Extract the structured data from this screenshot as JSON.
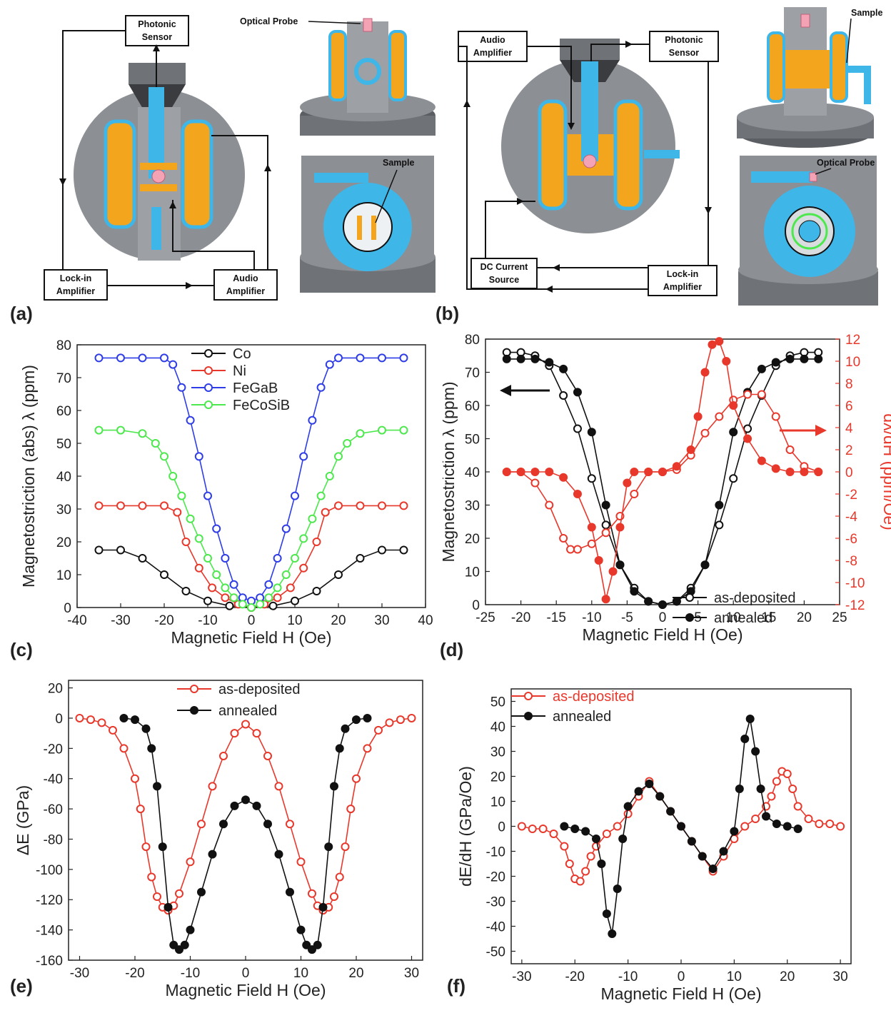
{
  "panel_letters": {
    "a": "(a)",
    "b": "(b)",
    "c": "(c)",
    "d": "(d)",
    "e": "(e)",
    "f": "(f)"
  },
  "diagram_a": {
    "photonic_sensor": [
      "Photonic",
      "Sensor"
    ],
    "lock_in": [
      "Lock-in",
      "Amplifier"
    ],
    "audio_amp": [
      "Audio",
      "Amplifier"
    ],
    "optical_probe": "Optical Probe",
    "sample": "Sample"
  },
  "diagram_b": {
    "audio_amp": [
      "Audio",
      "Amplifier"
    ],
    "photonic_sensor": [
      "Photonic",
      "Sensor"
    ],
    "dc_source": [
      "DC Current",
      "Source"
    ],
    "lock_in": [
      "Lock-in",
      "Amplifier"
    ],
    "sample": "Sample",
    "optical_probe": "Optical Probe"
  },
  "colors": {
    "black": "#111111",
    "red": "#e8382c",
    "blue": "#2f3de6",
    "green": "#4de84d",
    "coil": "#f2a51d",
    "ring": "#3fb6e8",
    "body": "#8c8f94"
  },
  "chart_data": [
    {
      "id": "c",
      "type": "line",
      "xlabel": "Magnetic Field H (Oe)",
      "ylabel": "Magnetostriction (abs) λ  (ppm)",
      "xlim": [
        -40,
        40
      ],
      "ylim": [
        0,
        80
      ],
      "xticks": [
        -40,
        -30,
        -20,
        -10,
        0,
        10,
        20,
        30,
        40
      ],
      "yticks": [
        0,
        10,
        20,
        30,
        40,
        50,
        60,
        70,
        80
      ],
      "legend": "top-center",
      "series": [
        {
          "name": "Co",
          "color": "#111111",
          "marker": "open",
          "x": [
            -35,
            -30,
            -25,
            -20,
            -15,
            -10,
            -5,
            0,
            5,
            10,
            15,
            20,
            25,
            30,
            35
          ],
          "y": [
            17.5,
            17.5,
            15,
            10,
            5,
            2,
            0.5,
            0,
            0.5,
            2,
            5,
            10,
            15,
            17.5,
            17.5
          ]
        },
        {
          "name": "Ni",
          "color": "#e8382c",
          "marker": "open",
          "x": [
            -35,
            -30,
            -25,
            -20,
            -17,
            -15,
            -12,
            -9,
            -6,
            -3,
            0,
            3,
            6,
            9,
            12,
            15,
            17,
            20,
            25,
            30,
            35
          ],
          "y": [
            31,
            31,
            31,
            31,
            29,
            20,
            12,
            6,
            3,
            1,
            0,
            1,
            3,
            6,
            12,
            20,
            29,
            31,
            31,
            31,
            31
          ]
        },
        {
          "name": "FeGaB",
          "color": "#2f3de6",
          "marker": "open",
          "x": [
            -35,
            -30,
            -25,
            -20,
            -18,
            -16,
            -14,
            -12,
            -10,
            -8,
            -6,
            -4,
            -2,
            0,
            2,
            4,
            6,
            8,
            10,
            12,
            14,
            16,
            18,
            20,
            25,
            30,
            35
          ],
          "y": [
            76,
            76,
            76,
            76,
            74,
            67,
            57,
            46,
            34,
            24,
            15,
            7,
            3,
            2,
            3,
            7,
            15,
            24,
            34,
            46,
            57,
            67,
            74,
            76,
            76,
            76,
            76
          ]
        },
        {
          "name": "FeCoSiB",
          "color": "#4de84d",
          "marker": "open",
          "x": [
            -35,
            -30,
            -25,
            -22,
            -20,
            -18,
            -16,
            -14,
            -12,
            -10,
            -8,
            -6,
            -4,
            -2,
            0,
            2,
            4,
            6,
            8,
            10,
            12,
            14,
            16,
            18,
            20,
            22,
            25,
            30,
            35
          ],
          "y": [
            54,
            54,
            53,
            50,
            46,
            40,
            34,
            27,
            21,
            15,
            10,
            6,
            3,
            1,
            0,
            1,
            3,
            6,
            10,
            15,
            21,
            27,
            34,
            40,
            46,
            50,
            53,
            54,
            54
          ]
        }
      ]
    },
    {
      "id": "d",
      "type": "line",
      "xlabel": "Magnetic Field H (Oe)",
      "ylabel": "Magnetostriction λ (ppm)",
      "y2label": "dλ/dH (ppm/Oe)",
      "xlim": [
        -25,
        25
      ],
      "ylim": [
        0,
        80
      ],
      "y2lim": [
        -12,
        12
      ],
      "xticks": [
        -25,
        -20,
        -15,
        -10,
        -5,
        0,
        5,
        10,
        15,
        20,
        25
      ],
      "yticks": [
        0,
        10,
        20,
        30,
        40,
        50,
        60,
        70,
        80
      ],
      "y2ticks": [
        -12,
        -10,
        -8,
        -6,
        -4,
        -2,
        0,
        2,
        4,
        6,
        8,
        10,
        12
      ],
      "legend": "bottom-right",
      "series": [
        {
          "name": "as-deposited",
          "axis": "left",
          "color": "#111111",
          "marker": "open",
          "x": [
            -22,
            -20,
            -18,
            -16,
            -14,
            -12,
            -10,
            -8,
            -6,
            -4,
            -2,
            0,
            2,
            4,
            6,
            8,
            10,
            12,
            14,
            16,
            18,
            20,
            22
          ],
          "y": [
            76,
            76,
            75,
            72,
            63,
            53,
            38,
            24,
            12,
            5,
            1,
            0,
            1,
            5,
            12,
            24,
            38,
            53,
            63,
            72,
            75,
            76,
            76
          ]
        },
        {
          "name": "annealed",
          "axis": "left",
          "color": "#111111",
          "marker": "filled",
          "x": [
            -22,
            -20,
            -18,
            -16,
            -14,
            -12,
            -10,
            -8,
            -6,
            -4,
            -2,
            0,
            2,
            4,
            6,
            8,
            10,
            12,
            14,
            16,
            18,
            20,
            22
          ],
          "y": [
            74,
            74,
            74,
            73,
            71,
            64,
            52,
            30,
            12,
            4,
            1,
            0,
            1,
            4,
            12,
            30,
            52,
            64,
            71,
            73,
            74,
            74,
            74
          ]
        },
        {
          "name": "",
          "axis": "right",
          "color": "#e8382c",
          "marker": "open",
          "x": [
            -22,
            -20,
            -18,
            -16,
            -14,
            -13,
            -12,
            -10,
            -8,
            -6,
            -4,
            -2,
            0,
            2,
            4,
            6,
            8,
            10,
            12,
            14,
            16,
            18,
            20,
            22
          ],
          "y": [
            0,
            0,
            -1,
            -3,
            -6,
            -7,
            -7,
            -6.5,
            -5.5,
            -4,
            -2,
            0,
            0,
            0.2,
            1.5,
            3.5,
            5,
            6.5,
            7,
            7,
            5,
            2,
            0.5,
            0
          ]
        },
        {
          "name": "",
          "axis": "right",
          "color": "#e8382c",
          "marker": "filled",
          "x": [
            -22,
            -20,
            -18,
            -16,
            -14,
            -12,
            -10,
            -9,
            -8,
            -7,
            -6,
            -5,
            -4,
            -2,
            0,
            2,
            4,
            5,
            6,
            7,
            8,
            9,
            10,
            12,
            14,
            16,
            18,
            20,
            22
          ],
          "y": [
            0,
            0,
            0,
            0,
            -0.5,
            -2,
            -5,
            -8,
            -11.5,
            -9,
            -5,
            -1,
            0,
            0,
            0,
            0.5,
            2,
            5,
            9,
            11.5,
            11.8,
            10,
            6,
            3,
            1,
            0.3,
            0,
            0,
            0
          ]
        }
      ]
    },
    {
      "id": "e",
      "type": "line",
      "xlabel": "Magnetic Field H (Oe)",
      "ylabel": "ΔE (GPa)",
      "xlim": [
        -32,
        32
      ],
      "ylim": [
        -160,
        25
      ],
      "xticks": [
        -30,
        -20,
        -10,
        0,
        10,
        20,
        30
      ],
      "yticks": [
        -160,
        -140,
        -120,
        -100,
        -80,
        -60,
        -40,
        -20,
        0,
        20
      ],
      "legend": "top-center",
      "series": [
        {
          "name": "as-deposited",
          "color": "#e8382c",
          "marker": "open",
          "x": [
            -30,
            -28,
            -26,
            -24,
            -22,
            -20,
            -19,
            -18,
            -17,
            -16,
            -15,
            -14,
            -13,
            -12,
            -10,
            -8,
            -6,
            -4,
            -2,
            0,
            2,
            4,
            6,
            8,
            10,
            12,
            13,
            14,
            15,
            16,
            17,
            18,
            19,
            20,
            22,
            24,
            26,
            28,
            30
          ],
          "y": [
            0,
            -1,
            -3,
            -8,
            -20,
            -40,
            -60,
            -85,
            -105,
            -118,
            -125,
            -127,
            -124,
            -116,
            -95,
            -70,
            -45,
            -25,
            -10,
            -4,
            -10,
            -25,
            -45,
            -70,
            -95,
            -116,
            -124,
            -127,
            -125,
            -118,
            -105,
            -85,
            -60,
            -40,
            -20,
            -8,
            -3,
            -1,
            0
          ]
        },
        {
          "name": "annealed",
          "color": "#111111",
          "marker": "filled",
          "x": [
            -22,
            -20,
            -18,
            -17,
            -16,
            -15,
            -14,
            -13,
            -12,
            -11,
            -10,
            -8,
            -6,
            -4,
            -2,
            0,
            2,
            4,
            6,
            8,
            10,
            11,
            12,
            13,
            14,
            15,
            16,
            17,
            18,
            20,
            22
          ],
          "y": [
            0,
            -1,
            -7,
            -20,
            -45,
            -85,
            -125,
            -150,
            -153,
            -150,
            -140,
            -115,
            -90,
            -70,
            -58,
            -54,
            -58,
            -70,
            -90,
            -115,
            -140,
            -150,
            -153,
            -150,
            -125,
            -85,
            -45,
            -20,
            -7,
            -1,
            0
          ]
        }
      ]
    },
    {
      "id": "f",
      "type": "line",
      "xlabel": "Magnetic Field H (Oe)",
      "ylabel": "dE/dH (GPa/Oe)",
      "xlim": [
        -32,
        32
      ],
      "ylim": [
        -55,
        55
      ],
      "xticks": [
        -30,
        -20,
        -10,
        0,
        10,
        20,
        30
      ],
      "yticks": [
        -50,
        -40,
        -30,
        -20,
        -10,
        0,
        10,
        20,
        30,
        40,
        50
      ],
      "legend": "top-left",
      "series": [
        {
          "name": "as-deposited",
          "color": "#e8382c",
          "marker": "open",
          "x": [
            -30,
            -28,
            -26,
            -24,
            -22,
            -21,
            -20,
            -19,
            -18,
            -17,
            -16,
            -14,
            -12,
            -10,
            -8,
            -6,
            -4,
            -2,
            0,
            2,
            4,
            6,
            8,
            10,
            12,
            14,
            16,
            17,
            18,
            19,
            20,
            21,
            22,
            24,
            26,
            28,
            30
          ],
          "y": [
            0,
            -1,
            -1,
            -3,
            -8,
            -15,
            -21,
            -22,
            -18,
            -12,
            -8,
            -3,
            0,
            5,
            12,
            18,
            12,
            6,
            0,
            -6,
            -12,
            -18,
            -12,
            -5,
            0,
            3,
            8,
            12,
            18,
            22,
            21,
            15,
            8,
            3,
            1,
            1,
            0
          ]
        },
        {
          "name": "annealed",
          "color": "#111111",
          "marker": "filled",
          "x": [
            -22,
            -20,
            -18,
            -16,
            -15,
            -14,
            -13,
            -12,
            -11,
            -10,
            -8,
            -6,
            -4,
            -2,
            0,
            2,
            4,
            6,
            8,
            10,
            11,
            12,
            13,
            14,
            15,
            16,
            18,
            20,
            22
          ],
          "y": [
            0,
            -1,
            -2,
            -5,
            -15,
            -35,
            -43,
            -25,
            -5,
            8,
            14,
            17,
            12,
            6,
            0,
            -6,
            -12,
            -17,
            -10,
            -2,
            15,
            35,
            43,
            30,
            15,
            4,
            1,
            0,
            -1
          ]
        }
      ]
    }
  ]
}
